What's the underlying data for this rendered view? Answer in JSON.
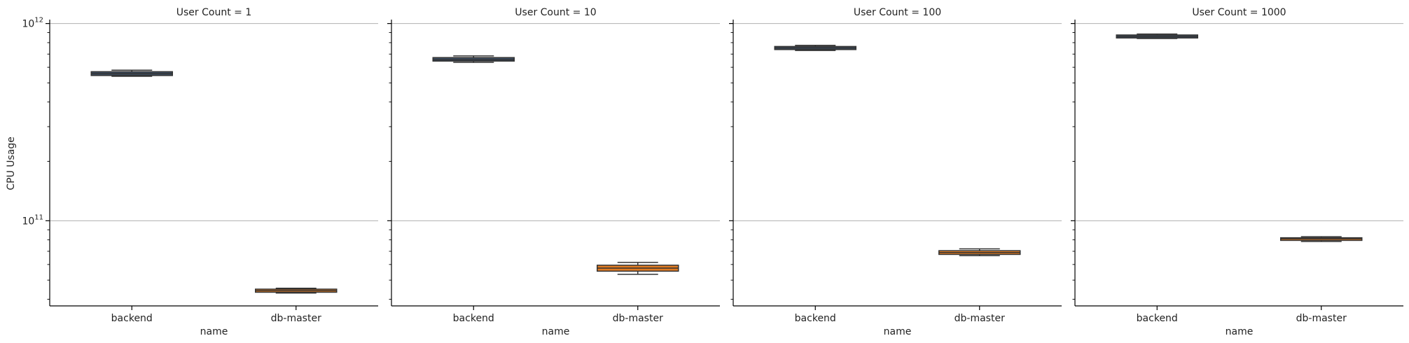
{
  "chart_data": {
    "type": "box",
    "y_scale": "log",
    "grid": "major y gridlines",
    "ylabel": "CPU Usage",
    "xlabel": "name",
    "ylim": [
      37000000000,
      1030000000000
    ],
    "y_ticks": [
      {
        "value": 100000000000,
        "base": "10",
        "exp": "11"
      },
      {
        "value": 1000000000000,
        "base": "10",
        "exp": "12"
      }
    ],
    "categories": [
      "backend",
      "db-master"
    ],
    "colors": {
      "backend": "#3b4b5e",
      "db-master": "#e07b22"
    },
    "panels": [
      {
        "title": "User Count = 1",
        "boxes": [
          {
            "category": "backend",
            "min": 540000000000,
            "q1": 545000000000,
            "median": 557000000000,
            "q3": 570000000000,
            "max": 580000000000
          },
          {
            "category": "db-master",
            "min": 43000000000,
            "q1": 43400000000,
            "median": 44200000000,
            "q3": 45000000000,
            "max": 45500000000
          }
        ]
      },
      {
        "title": "User Count = 10",
        "boxes": [
          {
            "category": "backend",
            "min": 635000000000,
            "q1": 645000000000,
            "median": 655000000000,
            "q3": 672000000000,
            "max": 685000000000
          },
          {
            "category": "db-master",
            "min": 53500000000,
            "q1": 55500000000,
            "median": 57500000000,
            "q3": 59500000000,
            "max": 61500000000
          }
        ]
      },
      {
        "title": "User Count = 100",
        "boxes": [
          {
            "category": "backend",
            "min": 730000000000,
            "q1": 738000000000,
            "median": 752000000000,
            "q3": 765000000000,
            "max": 775000000000
          },
          {
            "category": "db-master",
            "min": 66500000000,
            "q1": 67500000000,
            "median": 69000000000,
            "q3": 70500000000,
            "max": 72000000000
          }
        ]
      },
      {
        "title": "User Count = 1000",
        "boxes": [
          {
            "category": "backend",
            "min": 840000000000,
            "q1": 845000000000,
            "median": 860000000000,
            "q3": 875000000000,
            "max": 885000000000
          },
          {
            "category": "db-master",
            "min": 78500000000,
            "q1": 79500000000,
            "median": 81000000000,
            "q3": 82000000000,
            "max": 83000000000
          }
        ]
      }
    ]
  }
}
